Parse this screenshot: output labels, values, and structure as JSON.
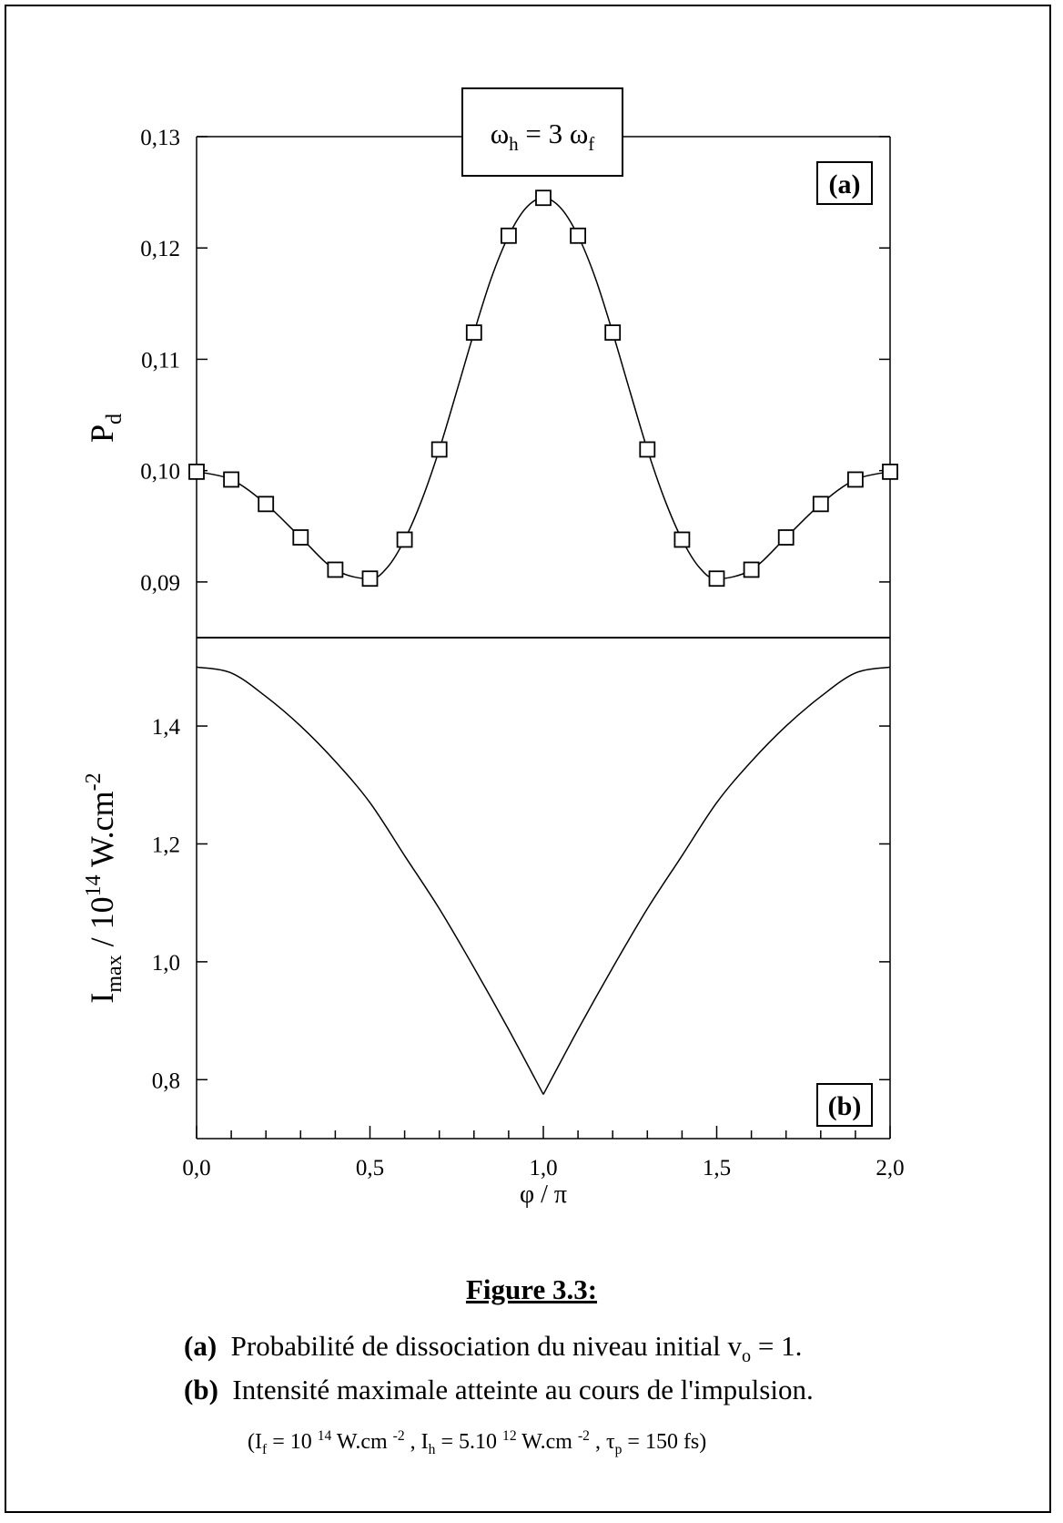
{
  "chart_data": [
    {
      "panel": "(a)",
      "type": "line",
      "ylabel": "P",
      "ylabel_sub": "d",
      "xlim": [
        0,
        2
      ],
      "ylim": [
        0.085,
        0.13
      ],
      "yticks": [
        0.09,
        0.1,
        0.11,
        0.12,
        0.13
      ],
      "ytick_labels": [
        "0,09",
        "0,10",
        "0,11",
        "0,12",
        "0,13"
      ],
      "legend_box": {
        "prefix": "ω",
        "sub1": "h",
        "mid": " = 3 ω",
        "sub2": "f"
      },
      "markers": {
        "shape": "square",
        "x": [
          0.0,
          0.1,
          0.2,
          0.3,
          0.4,
          0.5,
          0.6,
          0.7,
          0.8,
          0.9,
          1.0,
          1.1,
          1.2,
          1.3,
          1.4,
          1.5,
          1.6,
          1.7,
          1.8,
          1.9,
          2.0
        ],
        "y": [
          0.0999,
          0.0992,
          0.097,
          0.094,
          0.0911,
          0.0903,
          0.0938,
          0.1019,
          0.1124,
          0.1211,
          0.1245,
          0.1211,
          0.1124,
          0.1019,
          0.0938,
          0.0903,
          0.0911,
          0.094,
          0.097,
          0.0992,
          0.0999
        ]
      },
      "curve": {
        "x": [
          0.0,
          0.1,
          0.2,
          0.3,
          0.4,
          0.5,
          0.55,
          0.6,
          0.65,
          0.7,
          0.75,
          0.8,
          0.85,
          0.9,
          0.95,
          1.0,
          1.05,
          1.1,
          1.15,
          1.2,
          1.25,
          1.3,
          1.35,
          1.4,
          1.45,
          1.5,
          1.6,
          1.7,
          1.8,
          1.9,
          2.0
        ],
        "y": [
          0.0999,
          0.0992,
          0.097,
          0.094,
          0.0911,
          0.0903,
          0.0913,
          0.0938,
          0.0974,
          0.1019,
          0.1071,
          0.1124,
          0.1173,
          0.1211,
          0.1236,
          0.1245,
          0.1236,
          0.1211,
          0.1173,
          0.1124,
          0.1071,
          0.1019,
          0.0974,
          0.0938,
          0.0913,
          0.0903,
          0.0911,
          0.094,
          0.097,
          0.0992,
          0.0999
        ]
      }
    },
    {
      "panel": "(b)",
      "type": "line",
      "xlabel": "φ / π",
      "ylabel_parts": {
        "a": "I",
        "a_sub": "max",
        "b": " / 10",
        "b_sup": "14",
        "c": " W.cm",
        "c_sup": "-2"
      },
      "xlim": [
        0,
        2
      ],
      "ylim": [
        0.7,
        1.55
      ],
      "xticks": [
        0.0,
        0.5,
        1.0,
        1.5,
        2.0
      ],
      "xtick_labels": [
        "0,0",
        "0,5",
        "1,0",
        "1,5",
        "2,0"
      ],
      "yticks": [
        0.8,
        1.0,
        1.2,
        1.4
      ],
      "ytick_labels": [
        "0,8",
        "1,0",
        "1,2",
        "1,4"
      ],
      "curve": {
        "x": [
          0.0,
          0.1,
          0.2,
          0.3,
          0.4,
          0.5,
          0.6,
          0.7,
          0.8,
          0.9,
          1.0,
          1.1,
          1.2,
          1.3,
          1.4,
          1.5,
          1.6,
          1.7,
          1.8,
          1.9,
          2.0
        ],
        "y": [
          1.5,
          1.49,
          1.45,
          1.4,
          1.34,
          1.27,
          1.18,
          1.09,
          0.99,
          0.885,
          0.775,
          0.885,
          0.99,
          1.09,
          1.18,
          1.27,
          1.34,
          1.4,
          1.45,
          1.49,
          1.5
        ]
      }
    }
  ],
  "caption": {
    "title": "Figure 3.3:",
    "line_a_label": "(a)",
    "line_a_text": "Probabilité de dissociation du niveau initial v",
    "line_a_sub": "o",
    "line_a_end": " = 1.",
    "line_b_label": "(b)",
    "line_b_text": "Intensité maximale atteinte au cours de l'impulsion.",
    "params": {
      "p1": "(I",
      "p1_sub": "f",
      "p2": " = 10 ",
      "p2_sup": "14",
      "p3": " W.cm ",
      "p3_sup": "-2",
      "p4": " , I",
      "p4_sub": "h",
      "p5": " = 5.10 ",
      "p5_sup": "12",
      "p6": " W.cm ",
      "p6_sup": "-2",
      "p7": " , τ",
      "p7_sub": "p",
      "p8": " = 150 fs)"
    }
  }
}
